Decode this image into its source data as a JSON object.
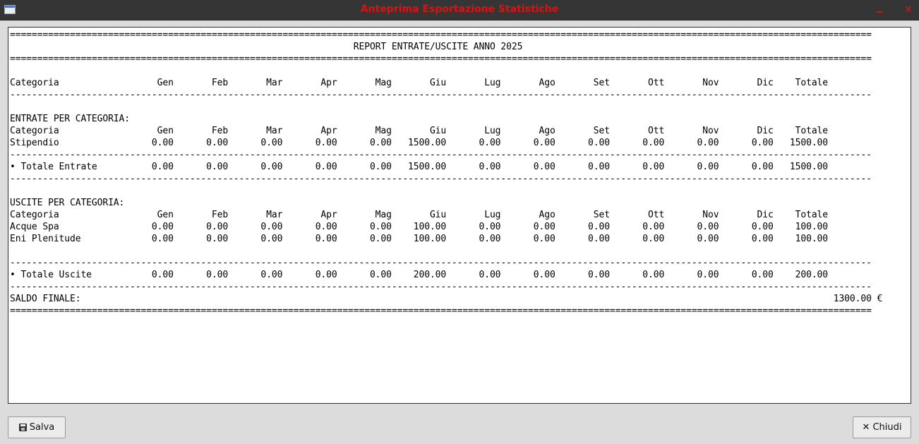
{
  "window": {
    "title": "Anteprima Esportazione Statistiche",
    "minimize_glyph": "",
    "close_glyph": "✕"
  },
  "report": {
    "separator_heavy": "==============================================================================================================================================================",
    "separator_light": "--------------------------------------------------------------------------------------------------------------------------------------------------------------",
    "title": "REPORT ENTRATE/USCITE ANNO 2025",
    "columns": [
      "Categoria",
      "Gen",
      "Feb",
      "Mar",
      "Apr",
      "Mag",
      "Giu",
      "Lug",
      "Ago",
      "Set",
      "Ott",
      "Nov",
      "Dic",
      "Totale"
    ],
    "income": {
      "heading": "ENTRATE PER CATEGORIA:",
      "rows": [
        {
          "name": "Stipendio",
          "values": [
            "0.00",
            "0.00",
            "0.00",
            "0.00",
            "0.00",
            "1500.00",
            "0.00",
            "0.00",
            "0.00",
            "0.00",
            "0.00",
            "0.00",
            "1500.00"
          ]
        }
      ],
      "total": {
        "name": "• Totale Entrate",
        "values": [
          "0.00",
          "0.00",
          "0.00",
          "0.00",
          "0.00",
          "1500.00",
          "0.00",
          "0.00",
          "0.00",
          "0.00",
          "0.00",
          "0.00",
          "1500.00"
        ]
      }
    },
    "expenses": {
      "heading": "USCITE PER CATEGORIA:",
      "rows": [
        {
          "name": "Acque Spa",
          "values": [
            "0.00",
            "0.00",
            "0.00",
            "0.00",
            "0.00",
            "100.00",
            "0.00",
            "0.00",
            "0.00",
            "0.00",
            "0.00",
            "0.00",
            "100.00"
          ]
        },
        {
          "name": "Eni Plenitude",
          "values": [
            "0.00",
            "0.00",
            "0.00",
            "0.00",
            "0.00",
            "100.00",
            "0.00",
            "0.00",
            "0.00",
            "0.00",
            "0.00",
            "0.00",
            "100.00"
          ]
        }
      ],
      "total": {
        "name": "• Totale Uscite",
        "values": [
          "0.00",
          "0.00",
          "0.00",
          "0.00",
          "0.00",
          "200.00",
          "0.00",
          "0.00",
          "0.00",
          "0.00",
          "0.00",
          "0.00",
          "200.00"
        ]
      }
    },
    "balance": {
      "label": "SALDO FINALE:",
      "value": "1300.00 €"
    }
  },
  "buttons": {
    "save_label": "Salva",
    "close_label": "Chiudi"
  },
  "icons": {
    "save": "floppy-disk-icon",
    "close": "x-icon"
  }
}
